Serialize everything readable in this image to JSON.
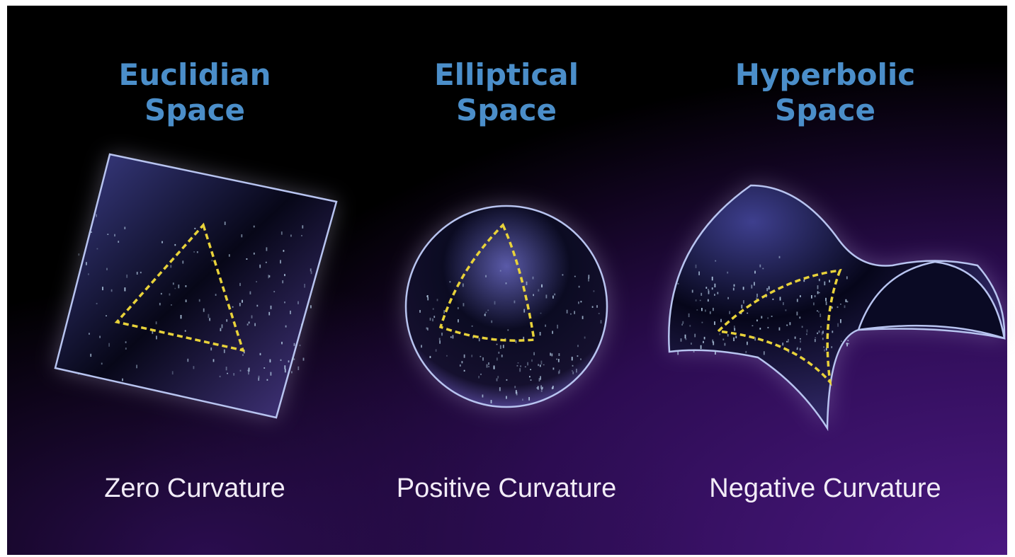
{
  "panels": [
    {
      "title_lines": [
        "Euclidian",
        "Space"
      ],
      "caption": "Zero Curvature"
    },
    {
      "title_lines": [
        "Elliptical",
        "Space"
      ],
      "caption": "Positive Curvature"
    },
    {
      "title_lines": [
        "Hyperbolic",
        "Space"
      ],
      "caption": "Negative Curvature"
    }
  ]
}
